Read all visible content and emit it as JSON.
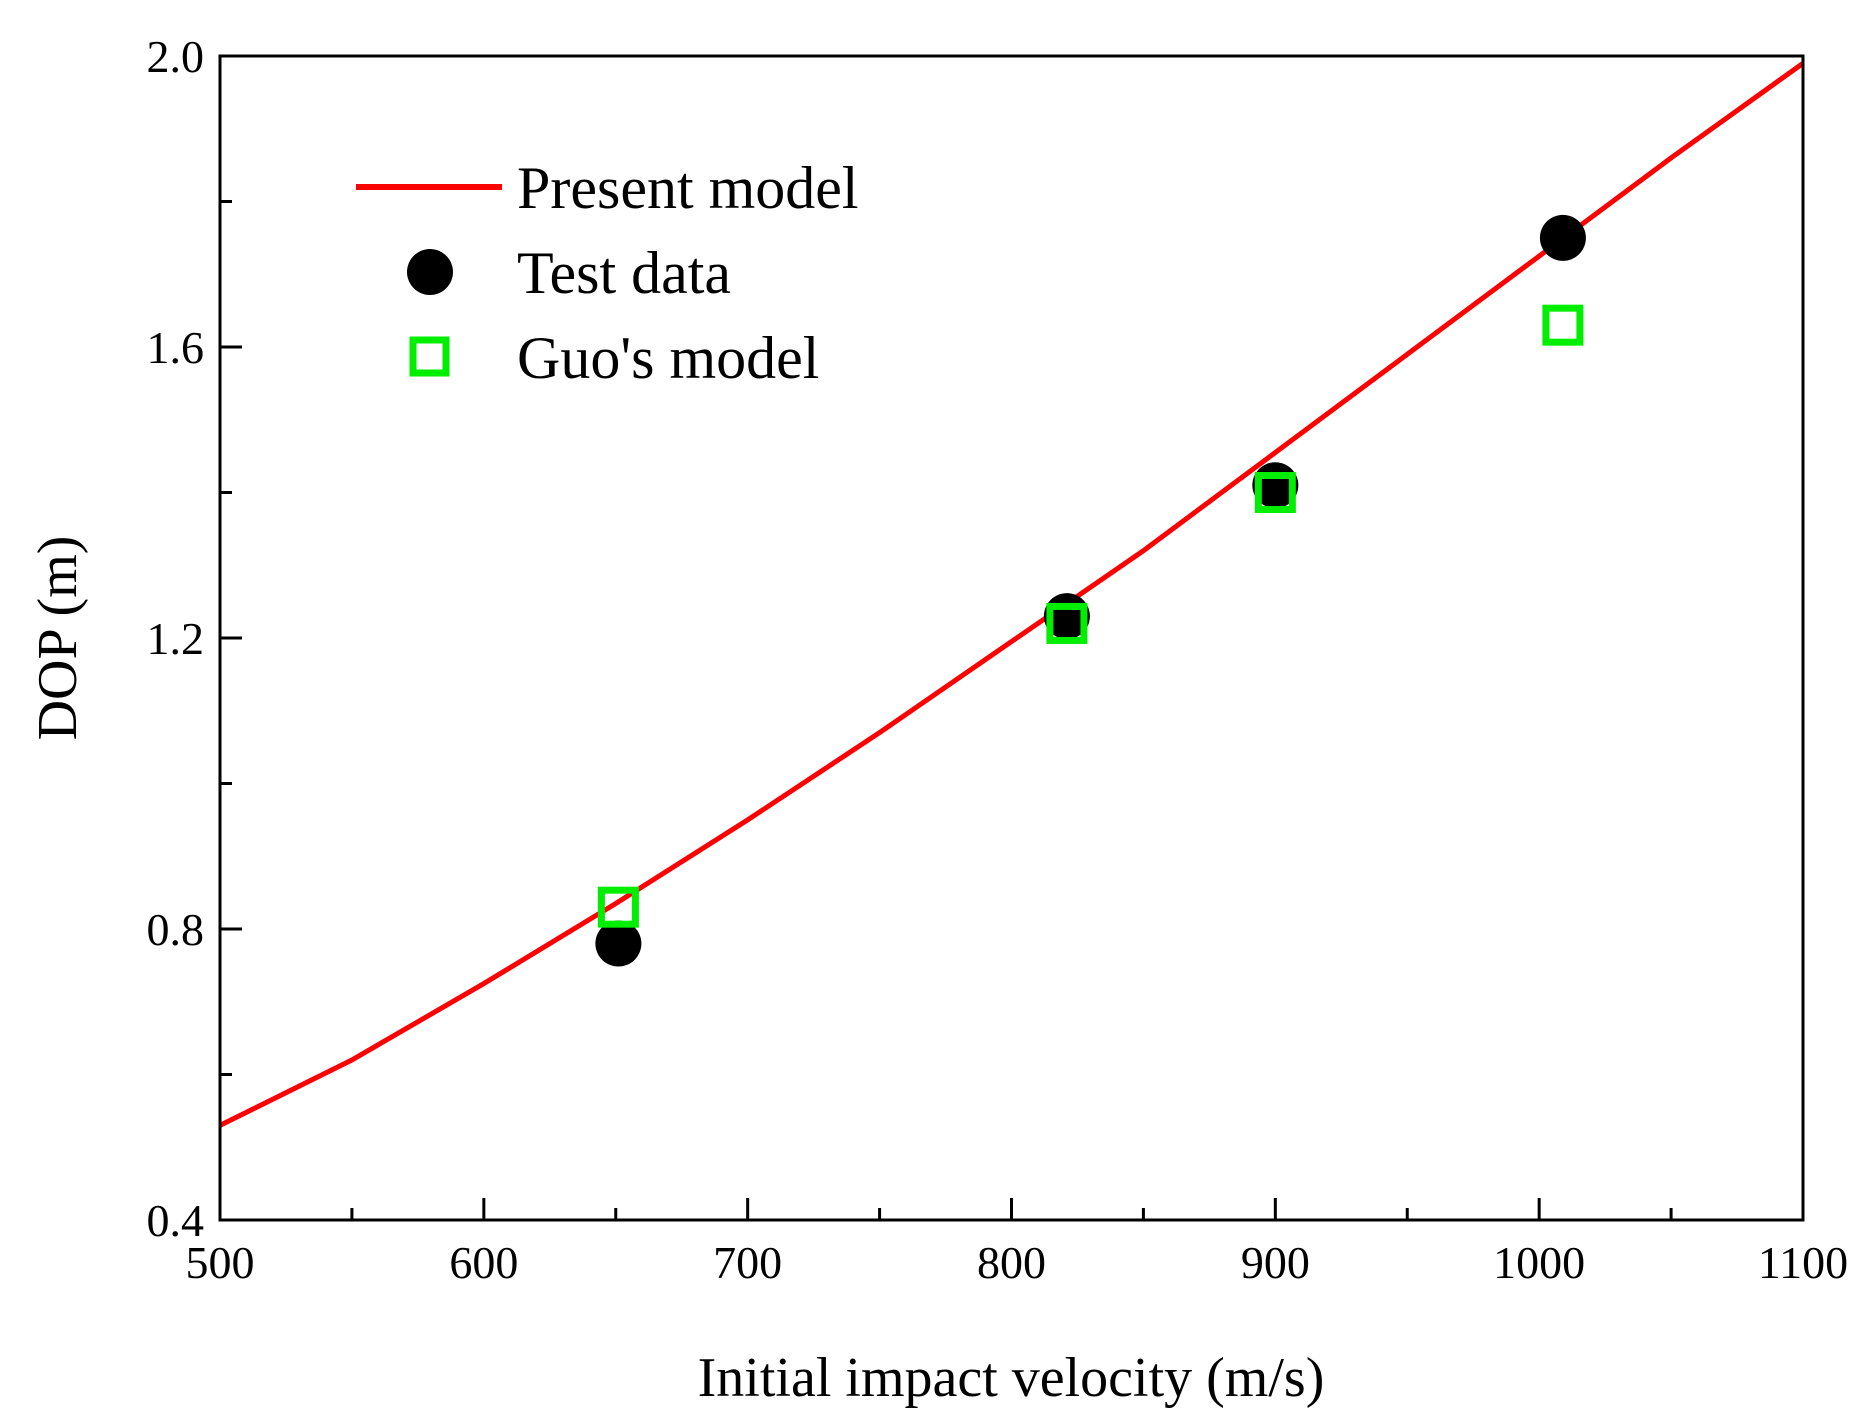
{
  "chart_data": {
    "type": "line+scatter",
    "xlabel": "Initial impact velocity (m/s)",
    "ylabel": "DOP (m)",
    "xlim": [
      500,
      1100
    ],
    "ylim": [
      0.4,
      2.0
    ],
    "x_major_ticks": [
      500,
      600,
      700,
      800,
      900,
      1000,
      1100
    ],
    "x_minor_ticks": [
      550,
      650,
      750,
      850,
      950,
      1050
    ],
    "x_tick_labels": [
      "500",
      "600",
      "700",
      "800",
      "900",
      "1000",
      "1100"
    ],
    "y_major_ticks": [
      0.4,
      0.8,
      1.2,
      1.6,
      2.0
    ],
    "y_minor_ticks": [
      0.6,
      1.0,
      1.4,
      1.8
    ],
    "y_tick_labels": [
      "0.4",
      "0.8",
      "1.2",
      "1.6",
      "2.0"
    ],
    "grid": false,
    "legend_position": "top-left",
    "series": [
      {
        "name": "Present model",
        "kind": "line",
        "color": "#ff0000",
        "x": [
          500,
          550,
          600,
          650,
          700,
          750,
          800,
          850,
          900,
          950,
          1000,
          1050,
          1100
        ],
        "y": [
          0.53,
          0.62,
          0.725,
          0.835,
          0.95,
          1.07,
          1.195,
          1.32,
          1.455,
          1.59,
          1.725,
          1.86,
          1.99
        ]
      },
      {
        "name": "Test data",
        "kind": "scatter",
        "marker": "filled-circle",
        "color": "#000000",
        "x": [
          651,
          821,
          900,
          1009
        ],
        "y": [
          0.78,
          1.23,
          1.41,
          1.75
        ]
      },
      {
        "name": "Guo's model",
        "kind": "scatter",
        "marker": "open-square",
        "color": "#00ee00",
        "x": [
          651,
          821,
          900,
          1009
        ],
        "y": [
          0.83,
          1.22,
          1.4,
          1.63
        ]
      }
    ]
  }
}
